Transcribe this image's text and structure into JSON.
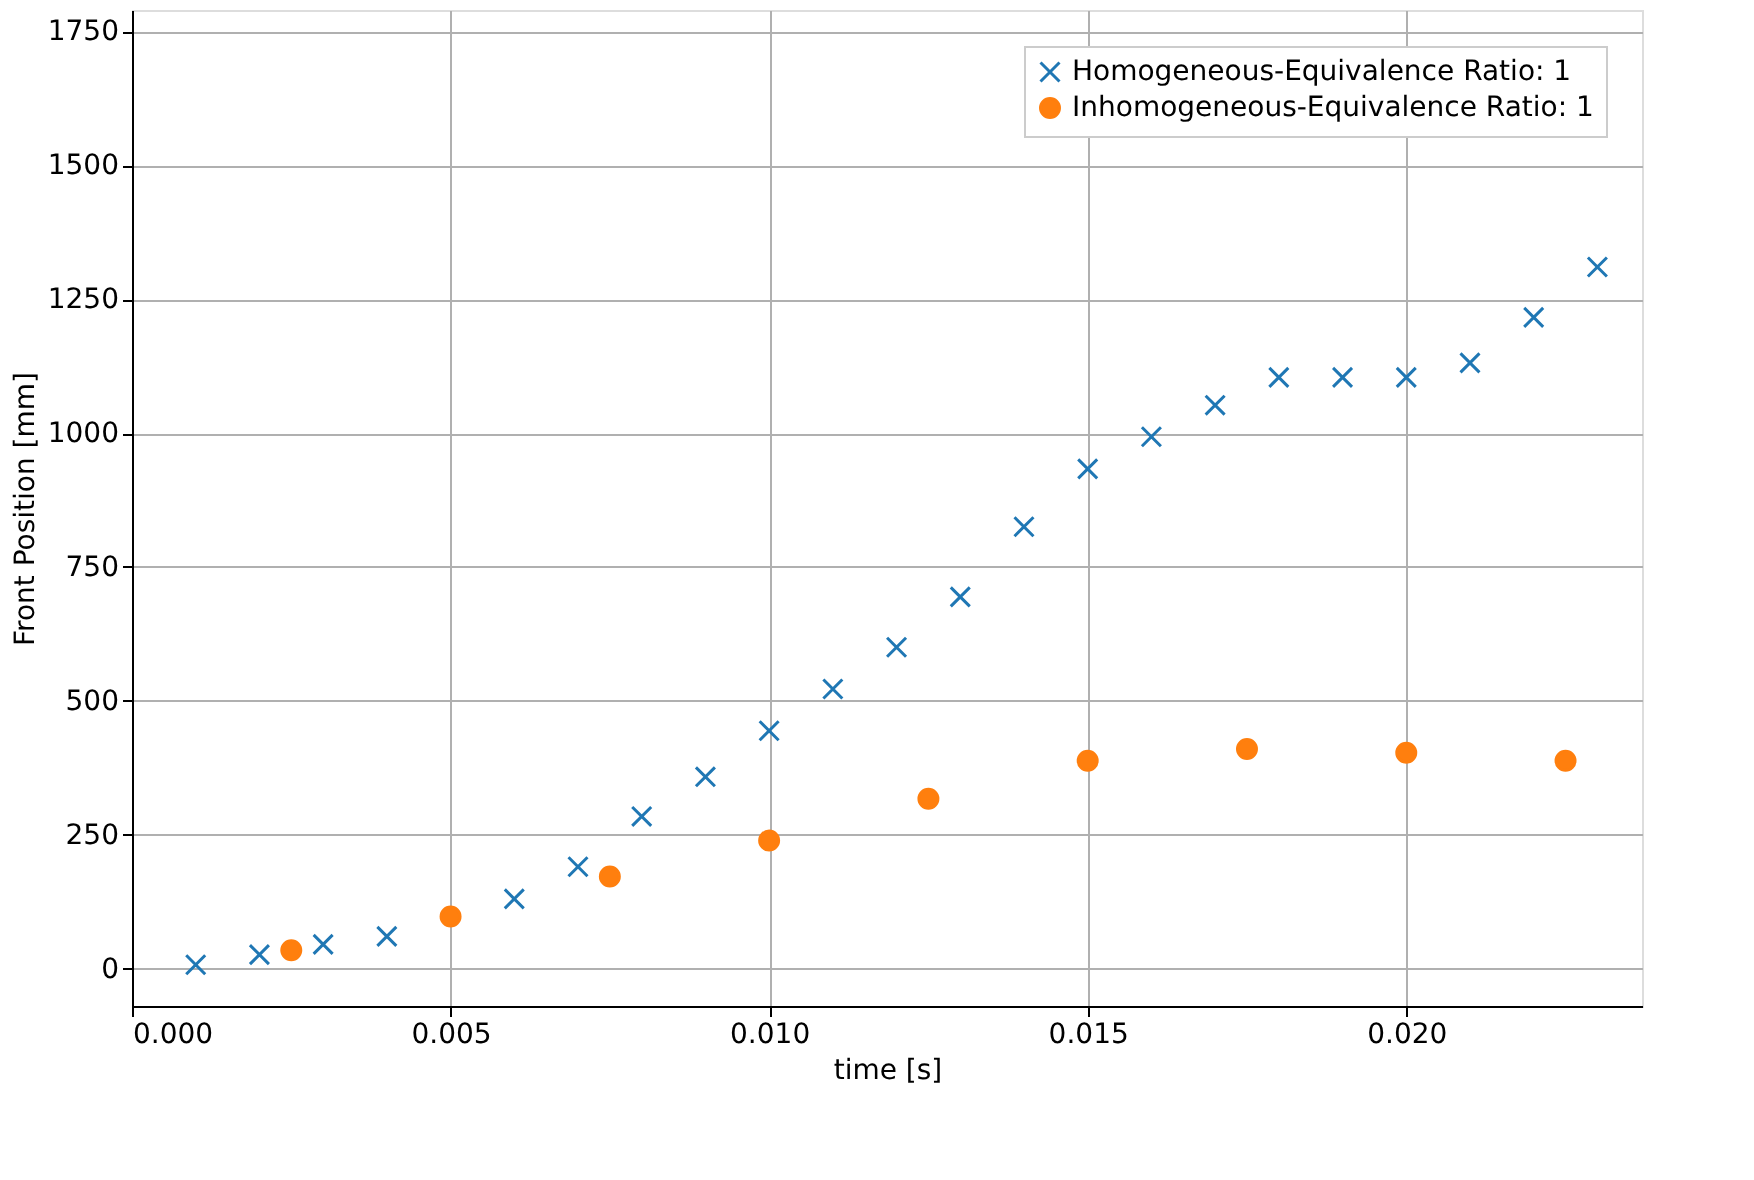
{
  "chart_data": {
    "type": "scatter",
    "xlabel": "time [s]",
    "ylabel": "Front Position [mm]",
    "xlim": [
      0,
      0.0237
    ],
    "ylim": [
      -70,
      1790
    ],
    "xticks": [
      {
        "value": 0,
        "label": "0.000"
      },
      {
        "value": 0.005,
        "label": "0.005"
      },
      {
        "value": 0.01,
        "label": "0.010"
      },
      {
        "value": 0.015,
        "label": "0.015"
      },
      {
        "value": 0.02,
        "label": "0.020"
      }
    ],
    "yticks": [
      0,
      250,
      500,
      750,
      1000,
      1250,
      1500,
      1750
    ],
    "grid": true,
    "legend": "top right",
    "series": [
      {
        "name": "Homogeneous-Equivalence Ratio: 1",
        "color": "#1f77b4",
        "marker": "cross",
        "x": [
          0.001,
          0.002,
          0.003,
          0.004,
          0.006,
          0.007,
          0.008,
          0.009,
          0.01,
          0.011,
          0.012,
          0.013,
          0.014,
          0.015,
          0.016,
          0.017,
          0.018,
          0.019,
          0.02,
          0.021,
          0.022,
          0.023
        ],
        "values": [
          7,
          26,
          45,
          60,
          130,
          190,
          284,
          358,
          444,
          522,
          600,
          694,
          825,
          933,
          993,
          1052,
          1104,
          1104,
          1104,
          1131,
          1216,
          1310
        ]
      },
      {
        "name": "Inhomogeneous-Equivalence Ratio: 1",
        "color": "#ff7f0e",
        "marker": "circle",
        "x": [
          0.0025,
          0.005,
          0.0075,
          0.01,
          0.0125,
          0.015,
          0.0175,
          0.02,
          0.0225
        ],
        "values": [
          34,
          97,
          172,
          239,
          317,
          388,
          410,
          403,
          388
        ]
      }
    ]
  }
}
